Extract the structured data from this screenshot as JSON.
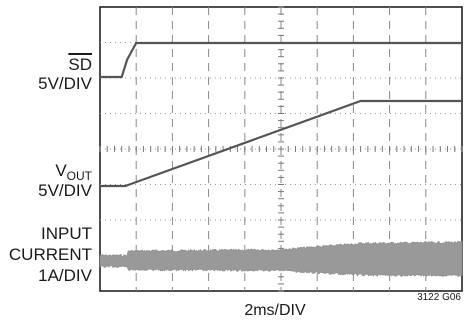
{
  "chart_data": {
    "type": "line",
    "time_unit": "ms",
    "x_range": [
      0,
      20
    ],
    "traces": [
      {
        "label": "SD",
        "scale": "5V/DIV",
        "color": "#555555",
        "points": [
          [
            0,
            0
          ],
          [
            1.2,
            0
          ],
          [
            1.5,
            1.6
          ],
          [
            2.0,
            3.1
          ],
          [
            20,
            3.1
          ]
        ]
      },
      {
        "label_main": "V",
        "label_sub": "OUT",
        "scale": "5V/DIV",
        "color": "#555555",
        "points": [
          [
            0,
            0
          ],
          [
            1.4,
            0
          ],
          [
            14.4,
            8.3
          ],
          [
            20,
            8.3
          ]
        ]
      },
      {
        "label_line1": "INPUT",
        "label_line2": "CURRENT",
        "scale": "1A/DIV",
        "color": "#999999",
        "band": [
          [
            0,
            0.6
          ],
          [
            1.5,
            0.6
          ],
          [
            1.5,
            1.0
          ],
          [
            9.5,
            1.1
          ],
          [
            10.5,
            1.2
          ],
          [
            14.5,
            1.7
          ],
          [
            20,
            1.8
          ]
        ]
      }
    ],
    "xlabel": "2ms/DIV",
    "figure_id": "3122 G06",
    "grid": true
  }
}
